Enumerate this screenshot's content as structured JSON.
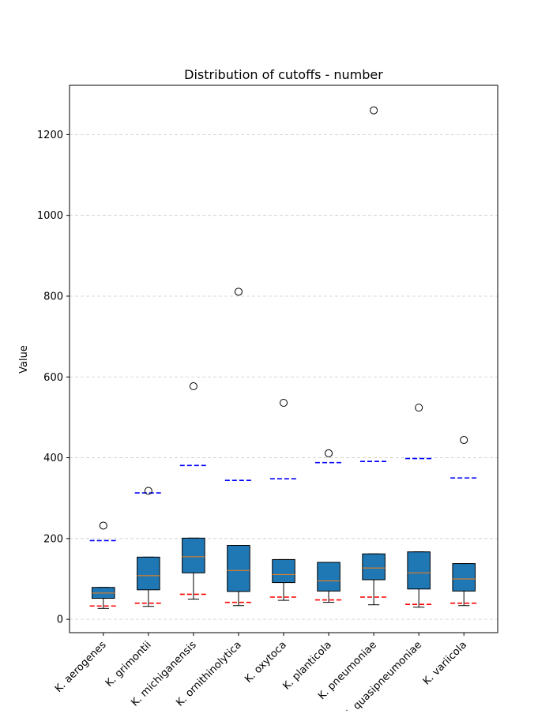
{
  "chart_data": {
    "type": "box",
    "title": "Distribution of cutoffs - number",
    "xlabel": "",
    "ylabel": "Value",
    "ylim": [
      -33,
      1322
    ],
    "yticks": [
      0,
      200,
      400,
      600,
      800,
      1000,
      1200
    ],
    "grid": "y-dashed",
    "box_color": "#1f77b4",
    "median_color": "#ff7f0e",
    "upper_line_color": "#0000ff",
    "lower_line_color": "#ff0000",
    "categories": [
      "K. aerogenes",
      "K. grimontii",
      "K. michiganensis",
      "K. ornithinolytica",
      "K. oxytoca",
      "K. planticola",
      "K. pneumoniae",
      "K. quasipneumoniae",
      "K. variicola"
    ],
    "boxes": [
      {
        "whisker_low": 27,
        "q1": 52,
        "median": 65,
        "q3": 79,
        "whisker_high": 79,
        "outliers": [
          232
        ],
        "upper_line": 195,
        "lower_line": 33
      },
      {
        "whisker_low": 32,
        "q1": 73,
        "median": 108,
        "q3": 154,
        "whisker_high": 154,
        "outliers": [
          318
        ],
        "upper_line": 313,
        "lower_line": 40
      },
      {
        "whisker_low": 50,
        "q1": 115,
        "median": 155,
        "q3": 201,
        "whisker_high": 201,
        "outliers": [
          577
        ],
        "upper_line": 381,
        "lower_line": 62
      },
      {
        "whisker_low": 34,
        "q1": 69,
        "median": 121,
        "q3": 183,
        "whisker_high": 183,
        "outliers": [
          811
        ],
        "upper_line": 344,
        "lower_line": 42
      },
      {
        "whisker_low": 47,
        "q1": 91,
        "median": 111,
        "q3": 148,
        "whisker_high": 148,
        "outliers": [
          536
        ],
        "upper_line": 348,
        "lower_line": 55
      },
      {
        "whisker_low": 42,
        "q1": 70,
        "median": 95,
        "q3": 141,
        "whisker_high": 141,
        "outliers": [
          411
        ],
        "upper_line": 388,
        "lower_line": 48
      },
      {
        "whisker_low": 36,
        "q1": 98,
        "median": 127,
        "q3": 162,
        "whisker_high": 162,
        "outliers": [
          1260
        ],
        "upper_line": 391,
        "lower_line": 55
      },
      {
        "whisker_low": 30,
        "q1": 75,
        "median": 115,
        "q3": 167,
        "whisker_high": 167,
        "outliers": [
          524
        ],
        "upper_line": 398,
        "lower_line": 37
      },
      {
        "whisker_low": 34,
        "q1": 70,
        "median": 100,
        "q3": 138,
        "whisker_high": 138,
        "outliers": [
          444
        ],
        "upper_line": 350,
        "lower_line": 40
      }
    ]
  }
}
